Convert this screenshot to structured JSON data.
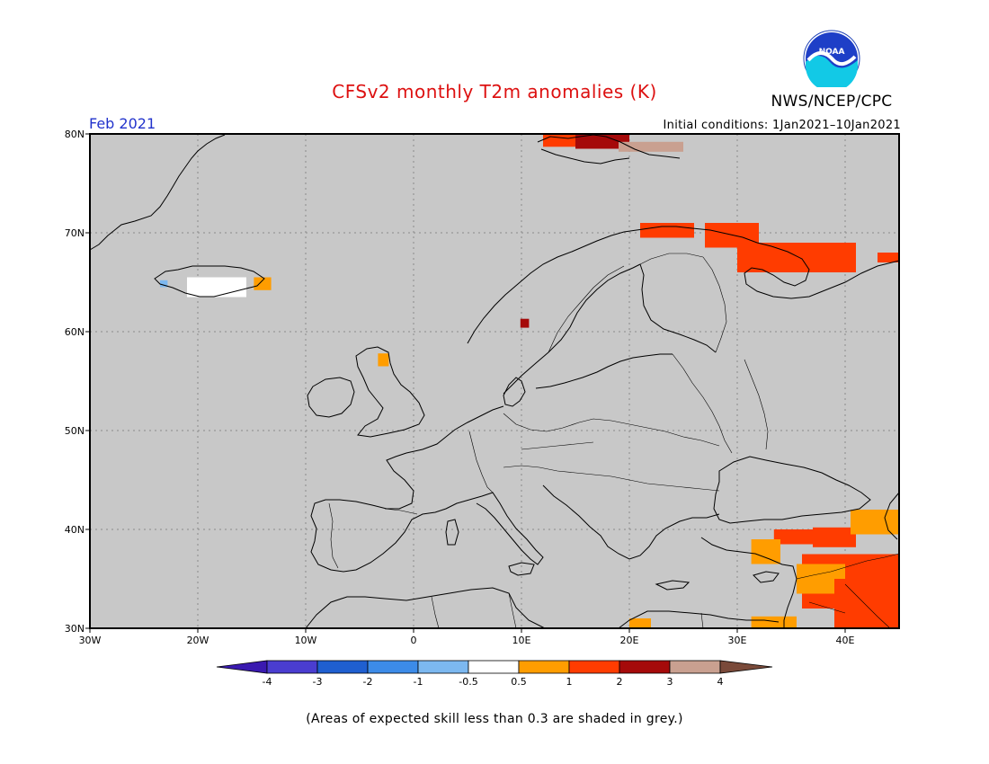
{
  "header": {
    "title": "CFSv2 monthly T2m anomalies (K)",
    "agency": "NWS/NCEP/CPC",
    "logo_text": "NOAA",
    "period": "Feb 2021",
    "initial_conditions": "Initial conditions: 1Jan2021–10Jan2021"
  },
  "map": {
    "projection": "lat-lon",
    "lon_range": [
      -30,
      45
    ],
    "lat_range": [
      30,
      80
    ],
    "background_color": "#c8c8c8",
    "lat_ticks": [
      {
        "value": 80,
        "label": "80N"
      },
      {
        "value": 70,
        "label": "70N"
      },
      {
        "value": 60,
        "label": "60N"
      },
      {
        "value": 50,
        "label": "50N"
      },
      {
        "value": 40,
        "label": "40N"
      },
      {
        "value": 30,
        "label": "30N"
      }
    ],
    "lon_ticks": [
      {
        "value": -30,
        "label": "30W"
      },
      {
        "value": -20,
        "label": "20W"
      },
      {
        "value": -10,
        "label": "10W"
      },
      {
        "value": 0,
        "label": "0"
      },
      {
        "value": 10,
        "label": "10E"
      },
      {
        "value": 20,
        "label": "20E"
      },
      {
        "value": 30,
        "label": "30E"
      },
      {
        "value": 40,
        "label": "40E"
      }
    ],
    "anomaly_regions": [
      {
        "name": "svalbard-west",
        "class": "1-2",
        "lon": [
          12,
          17
        ],
        "lat": [
          78.7,
          80
        ]
      },
      {
        "name": "svalbard-center",
        "class": "2-3",
        "lon": [
          15,
          20
        ],
        "lat": [
          78.5,
          80
        ]
      },
      {
        "name": "svalbard-east",
        "class": "3-4",
        "lon": [
          19,
          25
        ],
        "lat": [
          78.2,
          79.2
        ]
      },
      {
        "name": "north-cape",
        "class": "1-2",
        "lon": [
          21,
          26
        ],
        "lat": [
          69.5,
          71
        ]
      },
      {
        "name": "kola",
        "class": "1-2",
        "lon": [
          27,
          32
        ],
        "lat": [
          68.5,
          71
        ]
      },
      {
        "name": "white-sea",
        "class": "1-2",
        "lon": [
          30,
          41
        ],
        "lat": [
          66,
          69
        ]
      },
      {
        "name": "north-russia-east",
        "class": "1-2",
        "lon": [
          43,
          45
        ],
        "lat": [
          67,
          68
        ]
      },
      {
        "name": "norway-inland",
        "class": "2-3",
        "lon": [
          9.9,
          10.7
        ],
        "lat": [
          60.4,
          61.3
        ]
      },
      {
        "name": "scotland-east",
        "class": "0.5-1",
        "lon": [
          -3.3,
          -2.3
        ],
        "lat": [
          56.5,
          57.8
        ]
      },
      {
        "name": "iceland-southwest",
        "class": "-1--0.5",
        "lon": [
          -23.5,
          -22.8
        ],
        "lat": [
          64.5,
          65.2
        ]
      },
      {
        "name": "iceland-center",
        "class": "-0.5-0.5",
        "lon": [
          -21,
          -15.5
        ],
        "lat": [
          63.5,
          65.5
        ]
      },
      {
        "name": "iceland-east",
        "class": "0.5-1",
        "lon": [
          -14.8,
          -13.2
        ],
        "lat": [
          64.2,
          65.5
        ]
      },
      {
        "name": "anatolia-1",
        "class": "1-2",
        "lon": [
          33.4,
          37
        ],
        "lat": [
          38.5,
          40
        ]
      },
      {
        "name": "anatolia-2",
        "class": "1-2",
        "lon": [
          37,
          41
        ],
        "lat": [
          38.2,
          40.2
        ]
      },
      {
        "name": "anatolia-west",
        "class": "0.5-1",
        "lon": [
          31.3,
          34
        ],
        "lat": [
          36.5,
          39
        ]
      },
      {
        "name": "caucasus",
        "class": "0.5-1",
        "lon": [
          40.5,
          45
        ],
        "lat": [
          39.5,
          42
        ]
      },
      {
        "name": "levant",
        "class": "1-2",
        "lon": [
          36,
          45
        ],
        "lat": [
          32,
          37.5
        ]
      },
      {
        "name": "levant-south",
        "class": "0.5-1",
        "lon": [
          35.5,
          40
        ],
        "lat": [
          33.5,
          36.5
        ]
      },
      {
        "name": "iraq",
        "class": "1-2",
        "lon": [
          39,
          45
        ],
        "lat": [
          30,
          35
        ]
      },
      {
        "name": "sinai",
        "class": "0.5-1",
        "lon": [
          31.3,
          35.5
        ],
        "lat": [
          30,
          31.2
        ]
      },
      {
        "name": "libya-coast",
        "class": "0.5-1",
        "lon": [
          20,
          22
        ],
        "lat": [
          30,
          31
        ]
      }
    ]
  },
  "colorbar": {
    "levels": [
      "-4",
      "-3",
      "-2",
      "-1",
      "-0.5",
      "0.5",
      "1",
      "2",
      "3",
      "4"
    ],
    "colors": [
      "#3a1ab0",
      "#4a3dd0",
      "#1f5fd0",
      "#3c8be8",
      "#7cb8f0",
      "#ffffff",
      "#ff9d00",
      "#ff3c00",
      "#a50a0a",
      "#c9a090",
      "#7a4a3a"
    ],
    "class_colors": {
      "-1--0.5": "#7cb8f0",
      "-0.5-0.5": "#ffffff",
      "0.5-1": "#ff9d00",
      "1-2": "#ff3c00",
      "2-3": "#a50a0a",
      "3-4": "#c9a090"
    }
  },
  "footnote": "(Areas of expected skill less than 0.3 are shaded in grey.)"
}
